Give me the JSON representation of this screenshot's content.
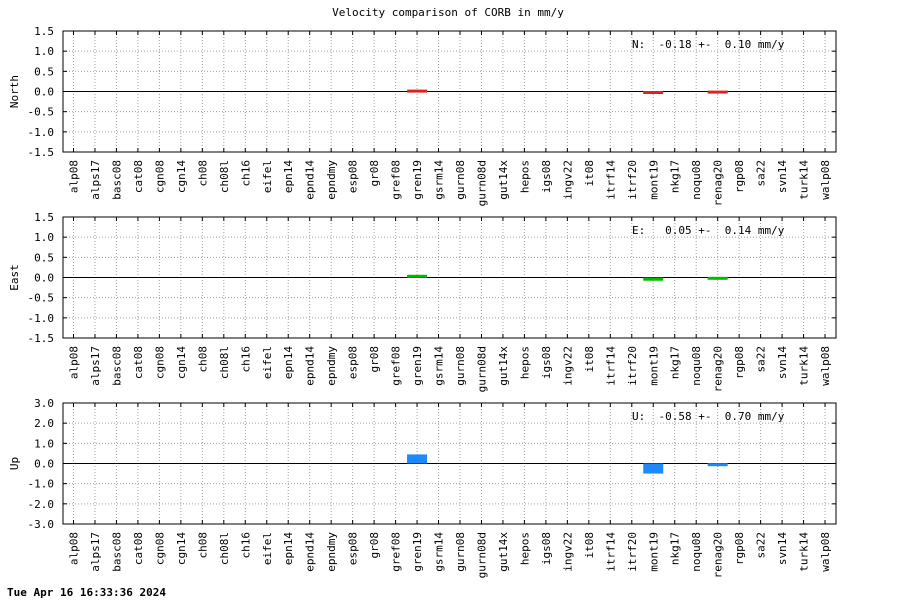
{
  "footer": {
    "timestamp": "Tue Apr 16 16:33:36 2024"
  },
  "chart_data": {
    "type": "bar",
    "title": "Velocity comparison of CORB in mm/y",
    "categories": [
      "alp08",
      "alps17",
      "basc08",
      "cat08",
      "cgn08",
      "cgn14",
      "ch08",
      "ch08l",
      "ch16",
      "eifel",
      "epn14",
      "epnd14",
      "epndmy",
      "esp08",
      "gr08",
      "gref08",
      "gren19",
      "gsrm14",
      "gurn08",
      "gurn08d",
      "gut14x",
      "hepos",
      "igs08",
      "ingv22",
      "it08",
      "itrf14",
      "itrf20",
      "mont19",
      "nkg17",
      "noqu08",
      "renag20",
      "rgp08",
      "sa22",
      "svn14",
      "turk14",
      "walp08"
    ],
    "grid": true,
    "panels": [
      {
        "ylabel": "North",
        "ylim": [
          -1.5,
          1.5
        ],
        "yticks": [
          "1.5",
          "1.0",
          "0.5",
          "0.0",
          "-0.5",
          "-1.0",
          "-1.5"
        ],
        "color": "#dd2222",
        "stat_text": "N:  -0.18 +-  0.10 mm/y",
        "bars": [
          {
            "category": "gren19",
            "value": 0.02
          },
          {
            "category": "mont19",
            "value": -0.05
          },
          {
            "category": "renag20",
            "value": -0.03
          }
        ]
      },
      {
        "ylabel": "East",
        "ylim": [
          -1.5,
          1.5
        ],
        "yticks": [
          "1.5",
          "1.0",
          "0.5",
          "0.0",
          "-0.5",
          "-1.0",
          "-1.5"
        ],
        "color": "#00bb00",
        "stat_text": "E:   0.05 +-  0.14 mm/y",
        "bars": [
          {
            "category": "gren19",
            "value": 0.06
          },
          {
            "category": "mont19",
            "value": -0.08
          },
          {
            "category": "renag20",
            "value": -0.04
          }
        ]
      },
      {
        "ylabel": "Up",
        "ylim": [
          -3.0,
          3.0
        ],
        "yticks": [
          "3.0",
          "2.0",
          "1.0",
          "0.0",
          "-1.0",
          "-2.0",
          "-3.0"
        ],
        "color": "#1e88ff",
        "stat_text": "U:  -0.58 +-  0.70 mm/y",
        "bars": [
          {
            "category": "gren19",
            "value": 0.45
          },
          {
            "category": "mont19",
            "value": -0.5
          },
          {
            "category": "renag20",
            "value": -0.12
          }
        ]
      }
    ]
  }
}
